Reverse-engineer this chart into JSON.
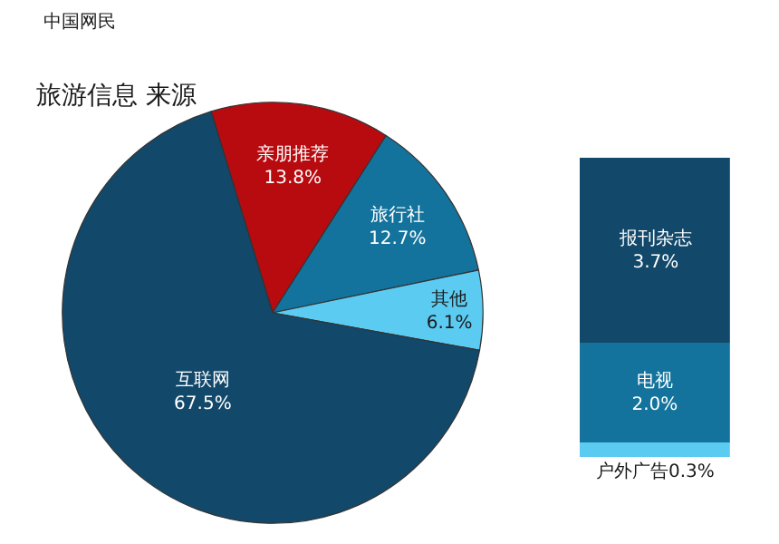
{
  "chart_data": [
    {
      "type": "pie",
      "title": "旅游信息 来源",
      "annotations": [
        "中国网民"
      ],
      "categories": [
        "亲朋推荐",
        "旅行社",
        "其他",
        "互联网"
      ],
      "values": [
        13.8,
        12.7,
        6.1,
        67.5
      ],
      "value_labels": [
        "13.8%",
        "12.7%",
        "6.1%",
        "67.5%"
      ],
      "colors": [
        "#b80b10",
        "#13739c",
        "#5ccbf2",
        "#12486a"
      ]
    },
    {
      "type": "bar",
      "stacked": true,
      "categories": [
        null
      ],
      "ylim": [
        0,
        6.0
      ],
      "series": [
        {
          "name": "户外广告",
          "color": "#5ccbf2",
          "values": [
            0.3
          ],
          "value_labels": [
            "0.3%"
          ]
        },
        {
          "name": "电视",
          "color": "#13739c",
          "values": [
            2.0
          ],
          "value_labels": [
            "2.0%"
          ]
        },
        {
          "name": "报刊杂志",
          "color": "#12486a",
          "values": [
            3.7
          ],
          "value_labels": [
            "3.7%"
          ]
        }
      ]
    }
  ]
}
